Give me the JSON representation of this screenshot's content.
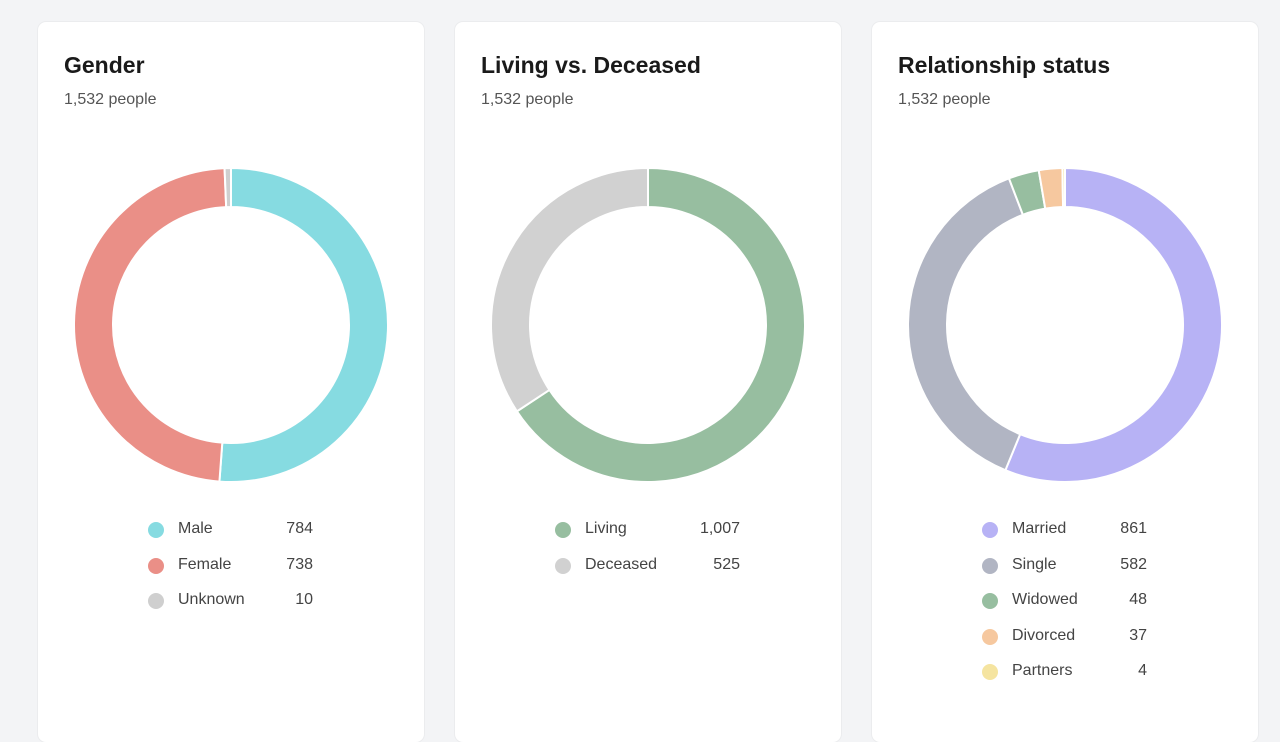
{
  "chart_data": [
    {
      "type": "pie",
      "title": "Gender",
      "subtitle": "1,532 people",
      "categories": [
        "Male",
        "Female",
        "Unknown"
      ],
      "values": [
        784,
        738,
        10
      ],
      "value_labels": [
        "784",
        "738",
        "10"
      ],
      "colors": [
        "#86dbe1",
        "#ea8f87",
        "#cfcfcf"
      ],
      "legend_position": "bottom"
    },
    {
      "type": "pie",
      "title": "Living vs. Deceased",
      "subtitle": "1,532 people",
      "categories": [
        "Living",
        "Deceased"
      ],
      "values": [
        1007,
        525
      ],
      "value_labels": [
        "1,007",
        "525"
      ],
      "colors": [
        "#97bea0",
        "#d1d1d1"
      ],
      "legend_position": "bottom"
    },
    {
      "type": "pie",
      "title": "Relationship status",
      "subtitle": "1,532 people",
      "categories": [
        "Married",
        "Single",
        "Widowed",
        "Divorced",
        "Partners"
      ],
      "values": [
        861,
        582,
        48,
        37,
        4
      ],
      "value_labels": [
        "861",
        "582",
        "48",
        "37",
        "4"
      ],
      "colors": [
        "#b7b2f5",
        "#b1b5c3",
        "#97bea0",
        "#f6c89f",
        "#f5e4a0"
      ],
      "legend_position": "bottom"
    }
  ]
}
